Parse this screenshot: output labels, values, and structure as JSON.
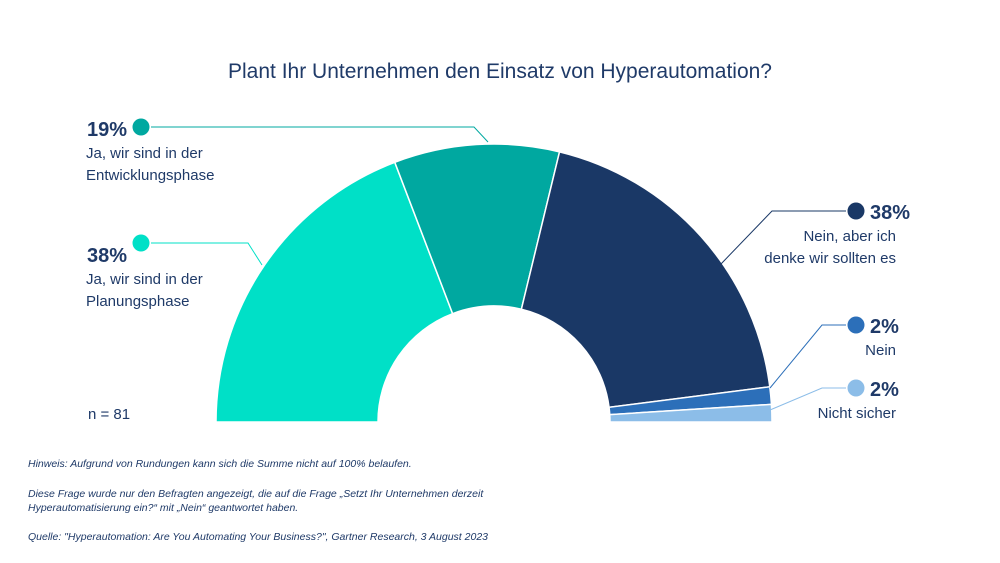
{
  "chart_data": {
    "type": "pie",
    "title": "Plant Ihr Unternehmen den Einsatz von Hyperautomation?",
    "slices": [
      {
        "pct_label": "38%",
        "value": 38,
        "label_lines": [
          "Ja, wir sind in der",
          "Planungsphase"
        ],
        "color": "#00e0c7"
      },
      {
        "pct_label": "19%",
        "value": 19,
        "label_lines": [
          "Ja, wir sind in der",
          "Entwicklungsphase"
        ],
        "color": "#00a8a0"
      },
      {
        "pct_label": "38%",
        "value": 38,
        "label_lines": [
          "Nein, aber ich",
          "denke wir sollten es"
        ],
        "color": "#1a3866"
      },
      {
        "pct_label": "2%",
        "value": 2,
        "label_lines": [
          "Nein"
        ],
        "color": "#2c6fb9"
      },
      {
        "pct_label": "2%",
        "value": 2,
        "label_lines": [
          "Nicht sicher"
        ],
        "color": "#8cbde8"
      }
    ],
    "sample_size": "n = 81"
  },
  "footnotes": {
    "hinweis": "Hinweis: Aufgrund von Rundungen kann sich die Summe nicht auf 100% belaufen.",
    "frage_line1": "Diese Frage wurde nur den Befragten angezeigt, die auf die Frage „Setzt Ihr Unternehmen derzeit",
    "frage_line2": "Hyperautomatisierung ein?“ mit „Nein“ geantwortet haben.",
    "quelle": "Quelle: \"Hyperautomation: Are You Automating Your Business?\", Gartner Research, 3 August 2023"
  }
}
